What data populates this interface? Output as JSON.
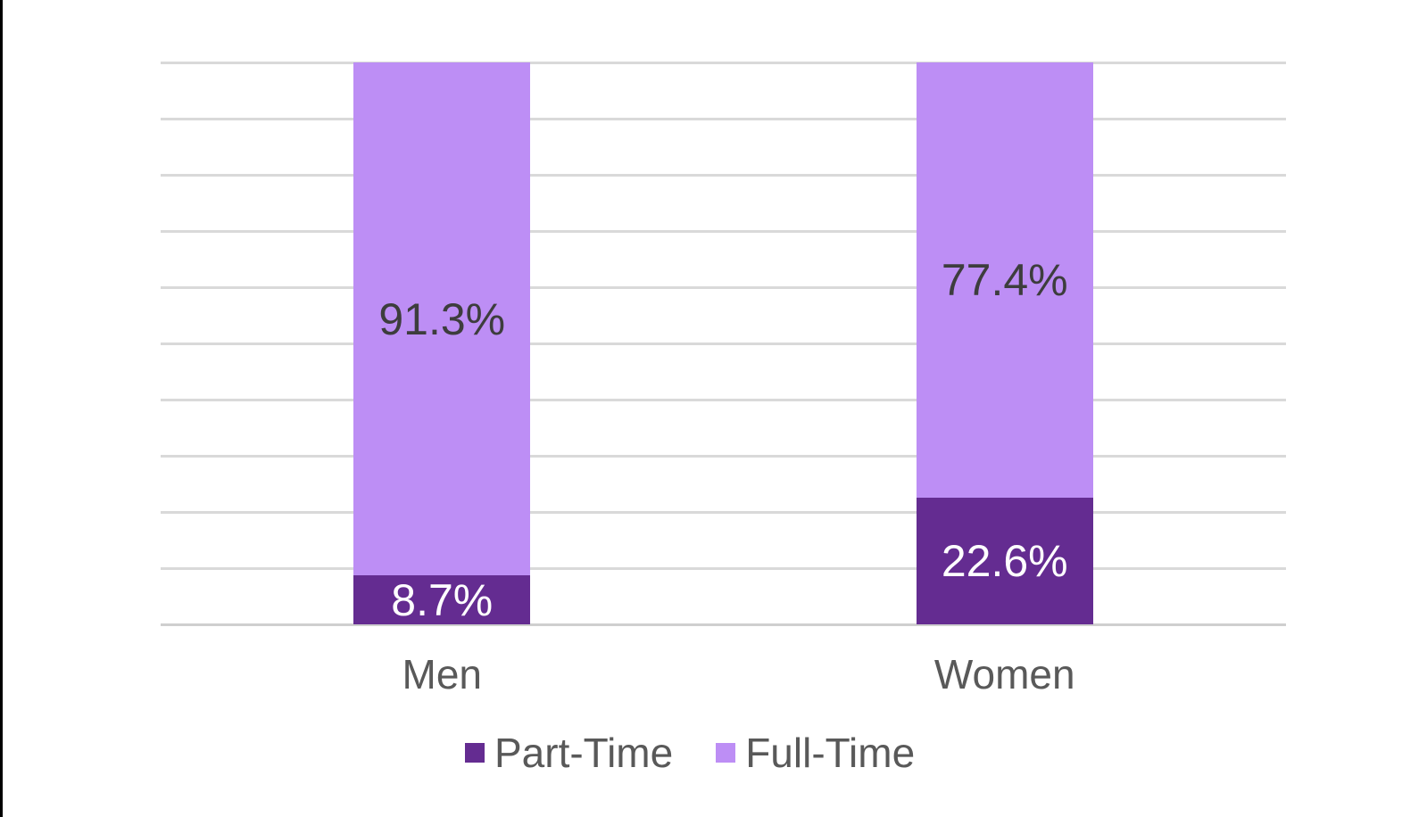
{
  "chart_data": {
    "type": "bar",
    "variant": "stacked-column-100",
    "title": "",
    "xlabel": "",
    "ylabel": "",
    "categories": [
      "Men",
      "Women"
    ],
    "series": [
      {
        "name": "Part-Time",
        "color": "#642c91",
        "label_color": "#ffffff",
        "values": [
          8.7,
          22.6
        ],
        "labels": [
          "8.7%",
          "22.6%"
        ]
      },
      {
        "name": "Full-Time",
        "color": "#bd8ef5",
        "label_color": "#3d3d3d",
        "values": [
          91.3,
          77.4
        ],
        "labels": [
          "91.3%",
          "77.4%"
        ]
      }
    ],
    "ylim": [
      0,
      100
    ],
    "grid": {
      "on": true,
      "interval": 10,
      "color": "#d9d9d9",
      "axis_color": "#cfcfcf"
    },
    "legend_position": "bottom",
    "axis_label_color": "#595959"
  }
}
